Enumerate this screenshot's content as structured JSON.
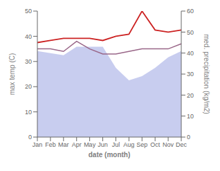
{
  "chart_data": {
    "type": "line",
    "categories": [
      "Jan",
      "Feb",
      "Mar",
      "Apr",
      "May",
      "Jun",
      "Jul",
      "Aug",
      "Sep",
      "Oct",
      "Nov",
      "Dec"
    ],
    "series": [
      {
        "type": "area",
        "axis": "y2",
        "color": "#b0b8e8",
        "values": [
          41,
          40,
          39,
          43,
          43,
          43,
          33,
          27,
          29,
          33,
          38,
          41
        ]
      },
      {
        "type": "line",
        "axis": "y2",
        "color": "#cc2222",
        "values": [
          45,
          46,
          47,
          47,
          47,
          46,
          48,
          49,
          60,
          51,
          50,
          51
        ]
      },
      {
        "type": "line",
        "axis": "y",
        "color": "#996688",
        "values": [
          35,
          35,
          34,
          38,
          35,
          33,
          33,
          34,
          35,
          35,
          35,
          37
        ]
      }
    ],
    "xlabel": "date (month)",
    "ylabel": "max temp (C)",
    "y2label": "med. precipitation (kg/m2)",
    "ylim": [
      0,
      50
    ],
    "yticks": [
      0,
      10,
      20,
      30,
      40,
      50
    ],
    "y2lim": [
      0,
      60
    ],
    "y2ticks": [
      0,
      10,
      20,
      30,
      40,
      50,
      60
    ],
    "grid": false
  }
}
